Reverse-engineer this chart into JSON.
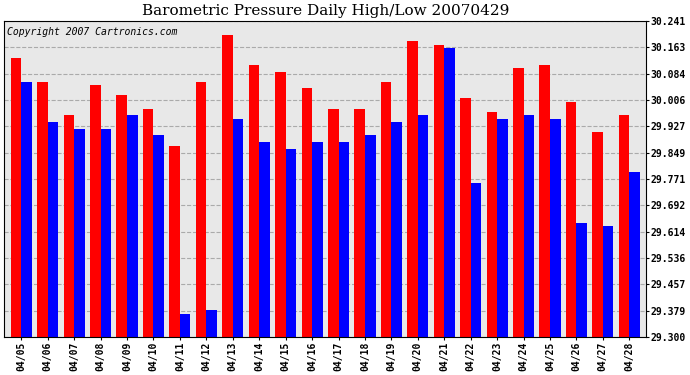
{
  "title": "Barometric Pressure Daily High/Low 20070429",
  "copyright": "Copyright 2007 Cartronics.com",
  "dates": [
    "04/05",
    "04/06",
    "04/07",
    "04/08",
    "04/09",
    "04/10",
    "04/11",
    "04/12",
    "04/13",
    "04/14",
    "04/15",
    "04/16",
    "04/17",
    "04/18",
    "04/19",
    "04/20",
    "04/21",
    "04/22",
    "04/23",
    "04/24",
    "04/25",
    "04/26",
    "04/27",
    "04/28"
  ],
  "highs": [
    30.13,
    30.06,
    29.96,
    30.05,
    30.02,
    29.98,
    29.87,
    30.06,
    30.2,
    30.11,
    30.09,
    30.04,
    29.98,
    29.98,
    30.06,
    30.18,
    30.17,
    30.01,
    29.97,
    30.1,
    30.11,
    30.0,
    29.91,
    29.96
  ],
  "lows": [
    30.06,
    29.94,
    29.92,
    29.92,
    29.96,
    29.9,
    29.37,
    29.38,
    29.95,
    29.88,
    29.86,
    29.88,
    29.88,
    29.9,
    29.94,
    29.96,
    30.16,
    29.76,
    29.95,
    29.96,
    29.95,
    29.64,
    29.63,
    29.79
  ],
  "ylim": [
    29.3,
    30.241
  ],
  "yticks": [
    29.3,
    29.379,
    29.457,
    29.536,
    29.614,
    29.692,
    29.771,
    29.849,
    29.927,
    30.006,
    30.084,
    30.163,
    30.241
  ],
  "bar_color_high": "#ff0000",
  "bar_color_low": "#0000ff",
  "bg_color": "#e8e8e8",
  "grid_color": "#aaaaaa",
  "title_fontsize": 11,
  "copyright_fontsize": 7,
  "fig_width": 6.9,
  "fig_height": 3.75,
  "dpi": 100
}
